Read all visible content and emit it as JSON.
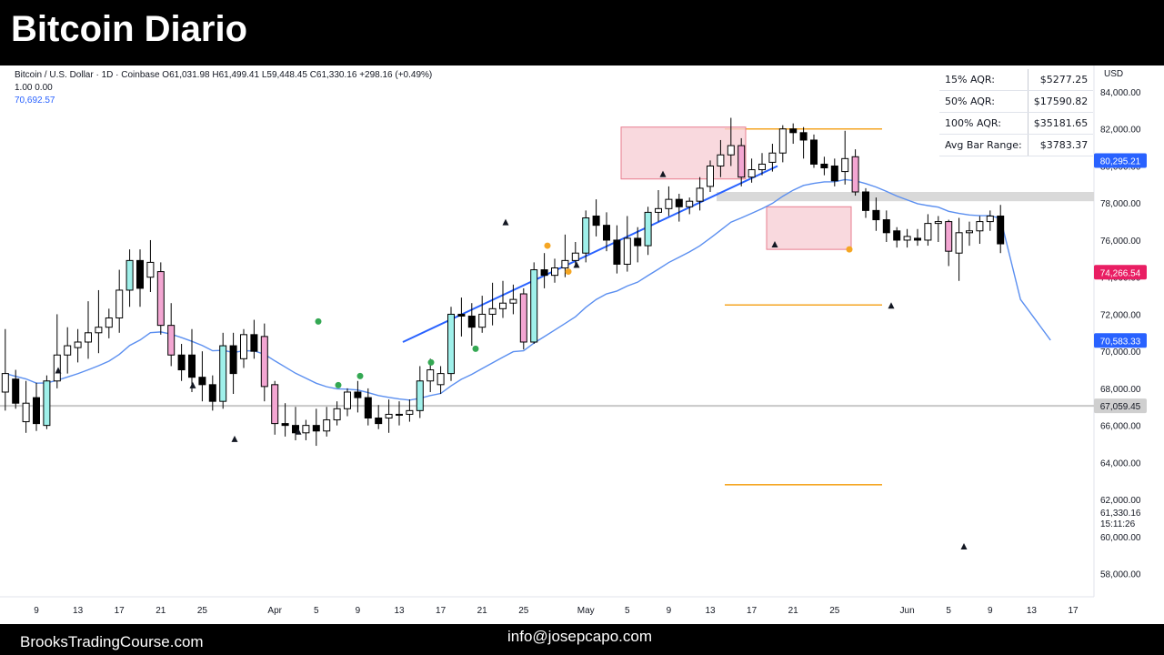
{
  "header": {
    "title": "Bitcoin Diario"
  },
  "footer": {
    "site": "BrooksTradingCourse.com",
    "email": "info@josepcapo.com"
  },
  "legend": {
    "symbol_line": "Bitcoin / U.S. Dollar · 1D · Coinbase",
    "open": "O61,031.98",
    "high": "H61,499.41",
    "low": "L59,448.45",
    "close": "C61,330.16",
    "change": "+298.16 (+0.49%)",
    "line2": "1.00  0.00",
    "ema_value": "70,692.57"
  },
  "aqr_table": [
    {
      "label": "15% AQR:",
      "value": "$5277.25"
    },
    {
      "label": "50% AQR:",
      "value": "$17590.82"
    },
    {
      "label": "100% AQR:",
      "value": "$35181.65"
    },
    {
      "label": "Avg Bar Range:",
      "value": "$3783.37"
    }
  ],
  "chart_data": {
    "type": "candlestick",
    "title": "Bitcoin / U.S. Dollar · 1D · Coinbase",
    "currency": "USD",
    "ylim": [
      56900,
      85000
    ],
    "y_ticks": [
      58000,
      60000,
      62000,
      64000,
      66000,
      68000,
      70000,
      72000,
      74000,
      76000,
      78000,
      80000,
      82000,
      84000
    ],
    "y_tick_labels": [
      "58,000.00",
      "60,000.00",
      "62,000.00",
      "64,000.00",
      "66,000.00",
      "68,000.00",
      "70,000.00",
      "72,000.00",
      "74,000.00",
      "76,000.00",
      "78,000.00",
      "80,000.00",
      "82,000.00",
      "84,000.00"
    ],
    "x_ticks": [
      {
        "label": "9",
        "date": "2024-03-09"
      },
      {
        "label": "13",
        "date": "2024-03-13"
      },
      {
        "label": "17",
        "date": "2024-03-17"
      },
      {
        "label": "21",
        "date": "2024-03-21"
      },
      {
        "label": "25",
        "date": "2024-03-25"
      },
      {
        "label": "Apr",
        "date": "2024-04-01"
      },
      {
        "label": "5",
        "date": "2024-04-05"
      },
      {
        "label": "9",
        "date": "2024-04-09"
      },
      {
        "label": "13",
        "date": "2024-04-13"
      },
      {
        "label": "17",
        "date": "2024-04-17"
      },
      {
        "label": "21",
        "date": "2024-04-21"
      },
      {
        "label": "25",
        "date": "2024-04-25"
      },
      {
        "label": "May",
        "date": "2024-05-01"
      },
      {
        "label": "5",
        "date": "2024-05-05"
      },
      {
        "label": "9",
        "date": "2024-05-09"
      },
      {
        "label": "13",
        "date": "2024-05-13"
      },
      {
        "label": "17",
        "date": "2024-05-17"
      },
      {
        "label": "21",
        "date": "2024-05-21"
      },
      {
        "label": "25",
        "date": "2024-05-25"
      },
      {
        "label": "Jun",
        "date": "2024-06-01"
      },
      {
        "label": "5",
        "date": "2024-06-05"
      },
      {
        "label": "9",
        "date": "2024-06-09"
      },
      {
        "label": "13",
        "date": "2024-06-13"
      },
      {
        "label": "17",
        "date": "2024-06-17"
      }
    ],
    "candles": [
      {
        "d": "2024-03-06",
        "o": 67800,
        "h": 71200,
        "c": 68800,
        "l": 66800
      },
      {
        "d": "2024-03-07",
        "o": 68500,
        "h": 69000,
        "c": 67200,
        "l": 66900
      },
      {
        "d": "2024-03-08",
        "o": 66200,
        "h": 68400,
        "c": 67200,
        "l": 65600
      },
      {
        "d": "2024-03-09",
        "o": 67500,
        "h": 68300,
        "c": 66100,
        "l": 65700
      },
      {
        "d": "2024-03-10",
        "o": 66000,
        "h": 68700,
        "c": 68400,
        "l": 65800
      },
      {
        "d": "2024-03-11",
        "o": 68400,
        "h": 72000,
        "c": 69800,
        "l": 68000
      },
      {
        "d": "2024-03-12",
        "o": 69800,
        "h": 71300,
        "c": 70300,
        "l": 68800
      },
      {
        "d": "2024-03-13",
        "o": 70200,
        "h": 71200,
        "c": 70500,
        "l": 69400
      },
      {
        "d": "2024-03-14",
        "o": 70500,
        "h": 72700,
        "c": 71000,
        "l": 69600
      },
      {
        "d": "2024-03-15",
        "o": 71000,
        "h": 73300,
        "c": 71300,
        "l": 69900
      },
      {
        "d": "2024-03-16",
        "o": 71300,
        "h": 72300,
        "c": 71800,
        "l": 70700
      },
      {
        "d": "2024-03-17",
        "o": 71800,
        "h": 74400,
        "c": 73300,
        "l": 71000
      },
      {
        "d": "2024-03-18",
        "o": 73300,
        "h": 75500,
        "c": 74900,
        "l": 72400
      },
      {
        "d": "2024-03-19",
        "o": 74900,
        "h": 75500,
        "c": 73400,
        "l": 72400
      },
      {
        "d": "2024-03-20",
        "o": 74000,
        "h": 76000,
        "c": 74800,
        "l": 73200
      },
      {
        "d": "2024-03-21",
        "o": 74300,
        "h": 74800,
        "c": 71400,
        "l": 70900
      },
      {
        "d": "2024-03-22",
        "o": 71400,
        "h": 72600,
        "c": 69800,
        "l": 69200
      },
      {
        "d": "2024-03-23",
        "o": 69800,
        "h": 70400,
        "c": 69000,
        "l": 68400
      },
      {
        "d": "2024-03-24",
        "o": 69800,
        "h": 71200,
        "c": 68600,
        "l": 67800
      },
      {
        "d": "2024-03-25",
        "o": 68600,
        "h": 70000,
        "c": 68200,
        "l": 67300
      },
      {
        "d": "2024-03-26",
        "o": 68200,
        "h": 68700,
        "c": 67300,
        "l": 66800
      },
      {
        "d": "2024-03-27",
        "o": 67300,
        "h": 71000,
        "c": 70300,
        "l": 66900
      },
      {
        "d": "2024-03-28",
        "o": 70300,
        "h": 71000,
        "c": 68800,
        "l": 67700
      },
      {
        "d": "2024-03-29",
        "o": 69600,
        "h": 71200,
        "c": 70900,
        "l": 69100
      },
      {
        "d": "2024-03-30",
        "o": 70900,
        "h": 71700,
        "c": 70000,
        "l": 69600
      },
      {
        "d": "2024-03-31",
        "o": 70800,
        "h": 71500,
        "c": 68100,
        "l": 67300
      },
      {
        "d": "2024-04-01",
        "o": 68200,
        "h": 68400,
        "c": 66100,
        "l": 65500
      },
      {
        "d": "2024-04-02",
        "o": 66100,
        "h": 67200,
        "c": 66000,
        "l": 65400
      },
      {
        "d": "2024-04-03",
        "o": 66000,
        "h": 67000,
        "c": 65600,
        "l": 65200
      },
      {
        "d": "2024-04-04",
        "o": 65600,
        "h": 66300,
        "c": 66000,
        "l": 65200
      },
      {
        "d": "2024-04-05",
        "o": 66000,
        "h": 66900,
        "c": 65700,
        "l": 64900
      },
      {
        "d": "2024-04-06",
        "o": 65700,
        "h": 67000,
        "c": 66300,
        "l": 65400
      },
      {
        "d": "2024-04-07",
        "o": 66300,
        "h": 67300,
        "c": 66900,
        "l": 66000
      },
      {
        "d": "2024-04-08",
        "o": 66900,
        "h": 68000,
        "c": 67800,
        "l": 66500
      },
      {
        "d": "2024-04-09",
        "o": 67800,
        "h": 68400,
        "c": 67500,
        "l": 66700
      },
      {
        "d": "2024-04-10",
        "o": 67500,
        "h": 68000,
        "c": 66400,
        "l": 66000
      },
      {
        "d": "2024-04-11",
        "o": 66400,
        "h": 67100,
        "c": 66100,
        "l": 65800
      },
      {
        "d": "2024-04-12",
        "o": 66400,
        "h": 67400,
        "c": 66600,
        "l": 65600
      },
      {
        "d": "2024-04-13",
        "o": 66600,
        "h": 67300,
        "c": 66600,
        "l": 66000
      },
      {
        "d": "2024-04-14",
        "o": 66600,
        "h": 67400,
        "c": 66800,
        "l": 66200
      },
      {
        "d": "2024-04-15",
        "o": 66800,
        "h": 69200,
        "c": 68400,
        "l": 66400
      },
      {
        "d": "2024-04-16",
        "o": 68400,
        "h": 69600,
        "c": 69000,
        "l": 67800
      },
      {
        "d": "2024-04-17",
        "o": 68200,
        "h": 69200,
        "c": 68800,
        "l": 67700
      },
      {
        "d": "2024-04-18",
        "o": 68800,
        "h": 72400,
        "c": 72000,
        "l": 68400
      },
      {
        "d": "2024-04-19",
        "o": 72000,
        "h": 72900,
        "c": 71900,
        "l": 70800
      },
      {
        "d": "2024-04-20",
        "o": 71900,
        "h": 72600,
        "c": 71300,
        "l": 70300
      },
      {
        "d": "2024-04-21",
        "o": 71300,
        "h": 73000,
        "c": 72000,
        "l": 71000
      },
      {
        "d": "2024-04-22",
        "o": 72000,
        "h": 73700,
        "c": 72300,
        "l": 71400
      },
      {
        "d": "2024-04-23",
        "o": 72300,
        "h": 73800,
        "c": 72600,
        "l": 71800
      },
      {
        "d": "2024-04-24",
        "o": 72600,
        "h": 73600,
        "c": 72800,
        "l": 72000
      },
      {
        "d": "2024-04-25",
        "o": 73100,
        "h": 73400,
        "c": 70500,
        "l": 70100
      },
      {
        "d": "2024-04-26",
        "o": 70500,
        "h": 74800,
        "c": 74400,
        "l": 70400
      },
      {
        "d": "2024-04-27",
        "o": 74400,
        "h": 75300,
        "c": 74100,
        "l": 73400
      },
      {
        "d": "2024-04-28",
        "o": 74100,
        "h": 75000,
        "c": 74500,
        "l": 73700
      },
      {
        "d": "2024-04-29",
        "o": 74500,
        "h": 76300,
        "c": 74900,
        "l": 74000
      },
      {
        "d": "2024-04-30",
        "o": 74900,
        "h": 75900,
        "c": 75300,
        "l": 74500
      },
      {
        "d": "2024-05-01",
        "o": 75300,
        "h": 77600,
        "c": 77200,
        "l": 74800
      },
      {
        "d": "2024-05-02",
        "o": 77300,
        "h": 78200,
        "c": 76800,
        "l": 76200
      },
      {
        "d": "2024-05-03",
        "o": 76800,
        "h": 77500,
        "c": 76000,
        "l": 75400
      },
      {
        "d": "2024-05-04",
        "o": 76000,
        "h": 76800,
        "c": 74700,
        "l": 74200
      },
      {
        "d": "2024-05-05",
        "o": 74700,
        "h": 77300,
        "c": 76100,
        "l": 74300
      },
      {
        "d": "2024-05-06",
        "o": 76100,
        "h": 76700,
        "c": 75700,
        "l": 74800
      },
      {
        "d": "2024-05-07",
        "o": 75700,
        "h": 77800,
        "c": 77500,
        "l": 75200
      },
      {
        "d": "2024-05-08",
        "o": 77500,
        "h": 78700,
        "c": 77700,
        "l": 77000
      },
      {
        "d": "2024-05-09",
        "o": 77700,
        "h": 78900,
        "c": 78200,
        "l": 77300
      },
      {
        "d": "2024-05-10",
        "o": 78200,
        "h": 78500,
        "c": 77800,
        "l": 77000
      },
      {
        "d": "2024-05-11",
        "o": 77800,
        "h": 78300,
        "c": 78100,
        "l": 77400
      },
      {
        "d": "2024-05-12",
        "o": 78100,
        "h": 79400,
        "c": 78800,
        "l": 77600
      },
      {
        "d": "2024-05-13",
        "o": 78900,
        "h": 80300,
        "c": 80000,
        "l": 78600
      },
      {
        "d": "2024-05-14",
        "o": 80000,
        "h": 81400,
        "c": 80600,
        "l": 79400
      },
      {
        "d": "2024-05-15",
        "o": 80600,
        "h": 82600,
        "c": 81100,
        "l": 80000
      },
      {
        "d": "2024-05-16",
        "o": 81100,
        "h": 81500,
        "c": 79400,
        "l": 78900
      },
      {
        "d": "2024-05-17",
        "o": 79400,
        "h": 80400,
        "c": 79800,
        "l": 79100
      },
      {
        "d": "2024-05-18",
        "o": 79800,
        "h": 80700,
        "c": 80100,
        "l": 79500
      },
      {
        "d": "2024-05-19",
        "o": 80200,
        "h": 81200,
        "c": 80700,
        "l": 79700
      },
      {
        "d": "2024-05-20",
        "o": 80700,
        "h": 82200,
        "c": 82000,
        "l": 80200
      },
      {
        "d": "2024-05-21",
        "o": 82000,
        "h": 82300,
        "c": 81800,
        "l": 81200
      },
      {
        "d": "2024-05-22",
        "o": 81800,
        "h": 82100,
        "c": 81400,
        "l": 80400
      },
      {
        "d": "2024-05-23",
        "o": 81400,
        "h": 81700,
        "c": 80100,
        "l": 79900
      },
      {
        "d": "2024-05-24",
        "o": 80100,
        "h": 80500,
        "c": 79900,
        "l": 79500
      },
      {
        "d": "2024-05-25",
        "o": 80000,
        "h": 80400,
        "c": 79200,
        "l": 78900
      },
      {
        "d": "2024-05-26",
        "o": 79700,
        "h": 81900,
        "c": 80400,
        "l": 79000
      },
      {
        "d": "2024-05-27",
        "o": 80500,
        "h": 80900,
        "c": 78600,
        "l": 78400
      },
      {
        "d": "2024-05-28",
        "o": 78600,
        "h": 78800,
        "c": 77600,
        "l": 77200
      },
      {
        "d": "2024-05-29",
        "o": 77600,
        "h": 78300,
        "c": 77100,
        "l": 76500
      },
      {
        "d": "2024-05-30",
        "o": 77100,
        "h": 77600,
        "c": 76400,
        "l": 75900
      },
      {
        "d": "2024-05-31",
        "o": 76500,
        "h": 76700,
        "c": 76000,
        "l": 75600
      },
      {
        "d": "2024-06-01",
        "o": 76000,
        "h": 76600,
        "c": 76200,
        "l": 75600
      },
      {
        "d": "2024-06-02",
        "o": 76100,
        "h": 76600,
        "c": 76000,
        "l": 75700
      },
      {
        "d": "2024-06-03",
        "o": 76000,
        "h": 77400,
        "c": 76900,
        "l": 75700
      },
      {
        "d": "2024-06-04",
        "o": 76900,
        "h": 77300,
        "c": 77000,
        "l": 75900
      },
      {
        "d": "2024-06-05",
        "o": 77000,
        "h": 77100,
        "c": 75400,
        "l": 74600
      },
      {
        "d": "2024-06-06",
        "o": 75300,
        "h": 77200,
        "c": 76400,
        "l": 73800
      },
      {
        "d": "2024-06-07",
        "o": 76400,
        "h": 77000,
        "c": 76500,
        "l": 75700
      },
      {
        "d": "2024-06-08",
        "o": 76500,
        "h": 77300,
        "c": 77000,
        "l": 75800
      },
      {
        "d": "2024-06-09",
        "o": 77000,
        "h": 77600,
        "c": 77300,
        "l": 76500
      },
      {
        "d": "2024-06-10",
        "o": 77300,
        "h": 77900,
        "c": 75800,
        "l": 75300
      }
    ],
    "reference_labels": [
      {
        "value": 80295.21,
        "label": "80,295.21"
      },
      {
        "value": 74266.54,
        "label": "74,266.54"
      },
      {
        "value": 70583.33,
        "label": "70,583.33"
      },
      {
        "value": 67059.45,
        "label": "67,059.45"
      }
    ],
    "last_price": {
      "value": "61,330.16",
      "countdown": "15:11:26"
    }
  },
  "colors": {
    "bull_filled": "#9ff0ea",
    "bear_filled": "#f3a6d2",
    "bull_body": "#ffffff",
    "bear_body": "#000000",
    "ema": "#5b8ff0",
    "trendline": "#2962ff",
    "box_fill": "#f7cfd6",
    "box_border": "#e87d8f",
    "orange_line": "#f5a623",
    "grey_band": "#d9d9d9",
    "label_blue": "#2962ff",
    "label_pink": "#e91e63",
    "label_grey": "#cfcfcf"
  }
}
